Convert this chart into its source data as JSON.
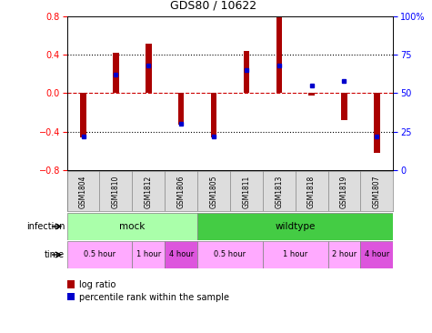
{
  "title": "GDS80 / 10622",
  "samples": [
    "GSM1804",
    "GSM1810",
    "GSM1812",
    "GSM1806",
    "GSM1805",
    "GSM1811",
    "GSM1813",
    "GSM1818",
    "GSM1819",
    "GSM1807"
  ],
  "log_ratio": [
    -0.46,
    0.42,
    0.52,
    -0.33,
    -0.46,
    0.44,
    0.79,
    -0.02,
    -0.28,
    -0.62
  ],
  "percentile": [
    22,
    62,
    68,
    30,
    22,
    65,
    68,
    55,
    58,
    22
  ],
  "ylim": [
    -0.8,
    0.8
  ],
  "yticks_left": [
    -0.8,
    -0.4,
    0.0,
    0.4,
    0.8
  ],
  "yticks_right": [
    0,
    25,
    50,
    75,
    100
  ],
  "bar_color": "#AA0000",
  "dot_color": "#0000CC",
  "hline_dashed_color": "#CC0000",
  "hline_dotted_color": "#000000",
  "infection_groups": [
    {
      "label": "mock",
      "start": 0,
      "end": 4,
      "color": "#AAFFAA"
    },
    {
      "label": "wildtype",
      "start": 4,
      "end": 10,
      "color": "#44CC44"
    }
  ],
  "time_groups": [
    {
      "label": "0.5 hour",
      "start": 0,
      "end": 2,
      "color": "#FFAAFF"
    },
    {
      "label": "1 hour",
      "start": 2,
      "end": 3,
      "color": "#FFAAFF"
    },
    {
      "label": "4 hour",
      "start": 3,
      "end": 4,
      "color": "#DD55DD"
    },
    {
      "label": "0.5 hour",
      "start": 4,
      "end": 6,
      "color": "#FFAAFF"
    },
    {
      "label": "1 hour",
      "start": 6,
      "end": 8,
      "color": "#FFAAFF"
    },
    {
      "label": "2 hour",
      "start": 8,
      "end": 9,
      "color": "#FFAAFF"
    },
    {
      "label": "4 hour",
      "start": 9,
      "end": 10,
      "color": "#DD55DD"
    }
  ],
  "legend_items": [
    {
      "label": "log ratio",
      "color": "#AA0000"
    },
    {
      "label": "percentile rank within the sample",
      "color": "#0000CC"
    }
  ],
  "bar_width": 0.18
}
